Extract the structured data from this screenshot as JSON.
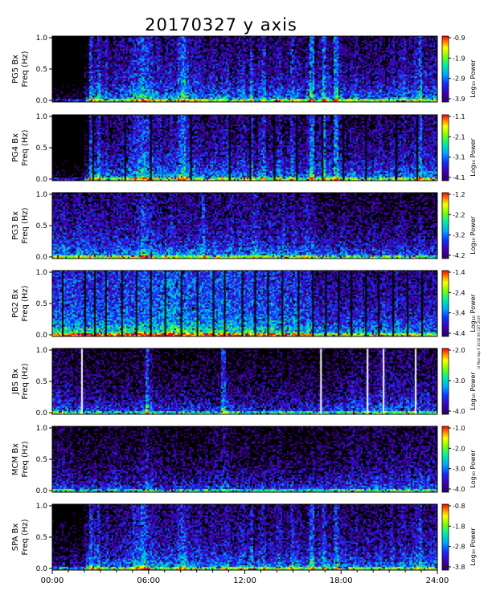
{
  "chart_data": {
    "type": "heatmap",
    "title": "20170327 y axis",
    "x_ticks": [
      "00:00",
      "06:00",
      "12:00",
      "18:00",
      "24:00"
    ],
    "x_range_hours": [
      0,
      24
    ],
    "y_range_hz": [
      0.0,
      1.0
    ],
    "y_ticks": [
      "0.0",
      "0.5",
      "1.0"
    ],
    "ylabel_freq": "Freq (Hz)",
    "colorbar_title": "Log₁₀ Power",
    "colormap": [
      "#000000",
      "#3a0066",
      "#1010ff",
      "#00aaff",
      "#00ff88",
      "#aaff00",
      "#ffff00",
      "#ff8800",
      "#ff0000"
    ],
    "side_note": "rrl Mon Sep 9 10:02:06 CDT 2019",
    "panels": [
      {
        "station": "PG5 Bx",
        "colorbar_ticks": [
          "-0.9",
          "-1.9",
          "-2.9",
          "-3.9"
        ],
        "intensity": [
          0.1,
          0.1,
          0.1,
          0.1,
          0.1,
          0.1,
          0.1,
          0.1,
          0.35,
          0.75,
          0.6,
          0.7,
          0.55,
          0.65,
          0.5,
          0.6,
          0.55,
          0.6,
          0.6,
          0.65,
          0.7,
          0.75,
          0.8,
          0.75,
          0.7,
          0.6,
          0.65,
          0.55,
          0.6,
          0.65,
          0.6,
          0.75,
          0.85,
          0.7,
          0.6,
          0.65,
          0.6,
          0.55,
          0.55,
          0.6,
          0.6,
          0.55,
          0.6,
          0.65,
          0.55,
          0.5,
          0.6,
          0.65,
          0.55,
          0.75,
          0.5,
          0.6,
          0.7,
          0.5,
          0.55,
          0.6,
          0.65,
          0.5,
          0.55,
          0.7,
          0.6,
          0.55,
          0.5,
          0.6,
          0.85,
          0.5,
          0.6,
          0.85,
          0.6,
          0.55,
          0.85,
          0.6,
          0.55,
          0.5,
          0.55,
          0.6,
          0.5,
          0.55,
          0.55,
          0.5,
          0.55,
          0.6,
          0.5,
          0.55,
          0.6,
          0.5,
          0.6,
          0.65,
          0.55,
          0.6,
          0.65,
          0.8,
          0.6,
          0.55,
          0.6,
          0.6
        ],
        "gaps_hours": []
      },
      {
        "station": "PG4 Bx",
        "colorbar_ticks": [
          "-1.1",
          "-2.1",
          "-3.1",
          "-4.1"
        ],
        "intensity": [
          0.1,
          0.1,
          0.1,
          0.1,
          0.1,
          0.1,
          0.1,
          0.1,
          0.35,
          0.75,
          0.6,
          0.75,
          0.55,
          0.6,
          0.5,
          0.55,
          0.55,
          0.6,
          0.6,
          0.65,
          0.7,
          0.75,
          0.8,
          0.75,
          0.7,
          0.6,
          0.65,
          0.55,
          0.6,
          0.65,
          0.6,
          0.75,
          0.85,
          0.7,
          0.6,
          0.65,
          0.6,
          0.55,
          0.55,
          0.6,
          0.6,
          0.55,
          0.6,
          0.65,
          0.55,
          0.5,
          0.6,
          0.65,
          0.55,
          0.75,
          0.5,
          0.6,
          0.7,
          0.5,
          0.55,
          0.6,
          0.65,
          0.5,
          0.55,
          0.7,
          0.6,
          0.55,
          0.5,
          0.6,
          0.85,
          0.5,
          0.6,
          0.85,
          0.6,
          0.55,
          0.85,
          0.6,
          0.55,
          0.5,
          0.55,
          0.6,
          0.5,
          0.55,
          0.55,
          0.5,
          0.55,
          0.6,
          0.5,
          0.55,
          0.6,
          0.5,
          0.6,
          0.65,
          0.55,
          0.6,
          0.65,
          0.8,
          0.6,
          0.55,
          0.6,
          0.6
        ],
        "gaps_hours": [
          2.5,
          4.5,
          6.1,
          8.6,
          11.0,
          12.3,
          13.8,
          15.2,
          16.8,
          18.1,
          19.5,
          21.4,
          22.7
        ]
      },
      {
        "station": "PG3 Bx",
        "colorbar_ticks": [
          "-1.2",
          "-2.2",
          "-3.2",
          "-4.2"
        ],
        "intensity": [
          0.6,
          0.6,
          0.65,
          0.6,
          0.55,
          0.6,
          0.65,
          0.6,
          0.6,
          0.65,
          0.6,
          0.55,
          0.6,
          0.6,
          0.55,
          0.6,
          0.65,
          0.6,
          0.6,
          0.55,
          0.6,
          0.65,
          0.75,
          0.7,
          0.65,
          0.6,
          0.6,
          0.55,
          0.6,
          0.65,
          0.6,
          0.6,
          0.55,
          0.6,
          0.6,
          0.55,
          0.6,
          0.75,
          0.6,
          0.55,
          0.6,
          0.6,
          0.55,
          0.6,
          0.65,
          0.55,
          0.6,
          0.6,
          0.55,
          0.6,
          0.7,
          0.6,
          0.55,
          0.6,
          0.6,
          0.55,
          0.6,
          0.65,
          0.55,
          0.6,
          0.6,
          0.55,
          0.6,
          0.65,
          0.6,
          0.55,
          0.5,
          0.5,
          0.55,
          0.5,
          0.45,
          0.5,
          0.55,
          0.5,
          0.45,
          0.5,
          0.5,
          0.45,
          0.5,
          0.55,
          0.5,
          0.45,
          0.5,
          0.5,
          0.45,
          0.5,
          0.55,
          0.5,
          0.45,
          0.5,
          0.5,
          0.55,
          0.5,
          0.45,
          0.5,
          0.5
        ],
        "gaps_hours": []
      },
      {
        "station": "PG2 Bx",
        "colorbar_ticks": [
          "-1.4",
          "-2.4",
          "-3.4",
          "-4.4"
        ],
        "intensity": [
          0.75,
          0.75,
          0.8,
          0.75,
          0.75,
          0.8,
          0.75,
          0.75,
          0.8,
          0.75,
          0.8,
          0.75,
          0.75,
          0.8,
          0.75,
          0.75,
          0.8,
          0.75,
          0.8,
          0.75,
          0.8,
          0.8,
          0.85,
          0.8,
          0.8,
          0.8,
          0.8,
          0.85,
          0.85,
          0.9,
          0.85,
          0.85,
          0.8,
          0.85,
          0.8,
          0.8,
          0.85,
          0.8,
          0.8,
          0.85,
          0.8,
          0.8,
          0.85,
          0.8,
          0.8,
          0.8,
          0.8,
          0.75,
          0.8,
          0.8,
          0.75,
          0.8,
          0.75,
          0.75,
          0.8,
          0.75,
          0.75,
          0.8,
          0.75,
          0.75,
          0.8,
          0.75,
          0.7,
          0.75,
          0.7,
          0.6,
          0.6,
          0.65,
          0.6,
          0.6,
          0.65,
          0.6,
          0.6,
          0.65,
          0.6,
          0.6,
          0.65,
          0.6,
          0.6,
          0.6,
          0.6,
          0.6,
          0.65,
          0.6,
          0.6,
          0.7,
          0.6,
          0.6,
          0.65,
          0.6,
          0.6,
          0.65,
          0.6,
          0.6,
          0.6,
          0.6
        ],
        "gaps_hours": [
          0.6,
          2.0,
          2.6,
          3.3,
          4.3,
          5.2,
          6.1,
          7.0,
          8.0,
          9.0,
          10.0,
          10.7,
          11.8,
          12.6,
          13.4,
          14.3,
          15.3,
          16.2,
          17.0,
          17.8,
          18.6,
          19.5,
          20.3,
          21.2,
          22.1,
          23.0
        ]
      },
      {
        "station": "JBS Bx",
        "colorbar_ticks": [
          "-2.0",
          "-3.0",
          "-4.0"
        ],
        "intensity": [
          0.55,
          0.55,
          0.5,
          0.55,
          0.5,
          0.45,
          0.5,
          0.4,
          0.45,
          0.4,
          0.45,
          0.5,
          0.45,
          0.4,
          0.45,
          0.45,
          0.4,
          0.45,
          0.45,
          0.4,
          0.45,
          0.45,
          0.5,
          0.8,
          0.55,
          0.45,
          0.45,
          0.4,
          0.45,
          0.4,
          0.45,
          0.4,
          0.45,
          0.4,
          0.45,
          0.4,
          0.45,
          0.4,
          0.45,
          0.4,
          0.45,
          0.4,
          0.75,
          0.5,
          0.45,
          0.4,
          0.45,
          0.4,
          0.45,
          0.4,
          0.45,
          0.4,
          0.45,
          0.4,
          0.45,
          0.4,
          0.5,
          0.45,
          0.4,
          0.45,
          0.4,
          0.45,
          0.4,
          0.45,
          0.45,
          0.4,
          0.45,
          0.4,
          0.45,
          0.4,
          0.45,
          0.5,
          0.45,
          0.5,
          0.55,
          0.5,
          0.55,
          0.5,
          0.55,
          0.5,
          0.55,
          0.6,
          0.55,
          0.5,
          0.55,
          0.5,
          0.55,
          0.5,
          0.55,
          0.55,
          0.5,
          0.55,
          0.5,
          0.55,
          0.5,
          0.5
        ],
        "white_lines_hours": [
          1.8,
          16.7,
          19.6,
          20.6,
          22.6
        ]
      },
      {
        "station": "MCM Bx",
        "colorbar_ticks": [
          "-1.0",
          "-2.0",
          "-3.0",
          "-4.0"
        ],
        "intensity": [
          0.45,
          0.5,
          0.5,
          0.45,
          0.45,
          0.4,
          0.45,
          0.4,
          0.45,
          0.4,
          0.45,
          0.4,
          0.45,
          0.4,
          0.45,
          0.5,
          0.45,
          0.4,
          0.45,
          0.4,
          0.45,
          0.45,
          0.5,
          0.6,
          0.5,
          0.45,
          0.45,
          0.4,
          0.45,
          0.4,
          0.45,
          0.4,
          0.45,
          0.4,
          0.45,
          0.4,
          0.45,
          0.4,
          0.45,
          0.4,
          0.5,
          0.45,
          0.55,
          0.5,
          0.45,
          0.4,
          0.45,
          0.4,
          0.45,
          0.4,
          0.45,
          0.4,
          0.45,
          0.4,
          0.45,
          0.4,
          0.5,
          0.45,
          0.4,
          0.45,
          0.4,
          0.45,
          0.4,
          0.45,
          0.45,
          0.4,
          0.45,
          0.4,
          0.45,
          0.4,
          0.45,
          0.5,
          0.45,
          0.5,
          0.55,
          0.5,
          0.5,
          0.5,
          0.5,
          0.5,
          0.55,
          0.5,
          0.5,
          0.5,
          0.55,
          0.5,
          0.5,
          0.5,
          0.55,
          0.5,
          0.5,
          0.55,
          0.5,
          0.55,
          0.5,
          0.5
        ],
        "gaps_hours": []
      },
      {
        "station": "SPA Bx",
        "colorbar_ticks": [
          "-0.8",
          "-1.8",
          "-2.8",
          "-3.8"
        ],
        "intensity": [
          0.3,
          0.3,
          0.35,
          0.3,
          0.3,
          0.35,
          0.3,
          0.3,
          0.5,
          0.75,
          0.6,
          0.7,
          0.55,
          0.6,
          0.5,
          0.55,
          0.55,
          0.6,
          0.6,
          0.6,
          0.7,
          0.7,
          0.8,
          0.7,
          0.65,
          0.6,
          0.6,
          0.55,
          0.6,
          0.6,
          0.6,
          0.7,
          0.75,
          0.65,
          0.6,
          0.6,
          0.6,
          0.55,
          0.55,
          0.6,
          0.6,
          0.55,
          0.6,
          0.65,
          0.55,
          0.5,
          0.6,
          0.65,
          0.55,
          0.7,
          0.5,
          0.6,
          0.65,
          0.5,
          0.55,
          0.6,
          0.65,
          0.5,
          0.55,
          0.7,
          0.6,
          0.55,
          0.5,
          0.6,
          0.8,
          0.55,
          0.6,
          0.75,
          0.6,
          0.55,
          0.75,
          0.6,
          0.55,
          0.5,
          0.55,
          0.6,
          0.5,
          0.55,
          0.55,
          0.5,
          0.55,
          0.6,
          0.5,
          0.55,
          0.6,
          0.5,
          0.6,
          0.6,
          0.55,
          0.6,
          0.65,
          0.75,
          0.6,
          0.55,
          0.6,
          0.6
        ],
        "gaps_hours": []
      }
    ]
  }
}
